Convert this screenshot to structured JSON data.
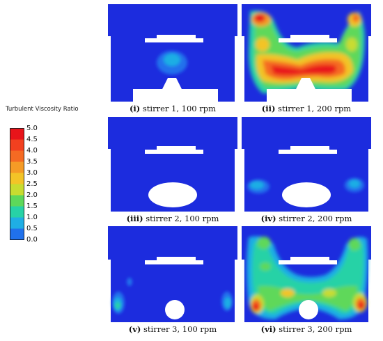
{
  "legend": {
    "title": "Turbulent Viscosity Ratio",
    "ticks": [
      "5.0",
      "4.5",
      "4.0",
      "3.5",
      "3.0",
      "2.5",
      "2.0",
      "1.5",
      "1.0",
      "0.5",
      "0.0"
    ],
    "colors": [
      "#e8141a",
      "#f2401f",
      "#f56a23",
      "#f59b26",
      "#f3c427",
      "#c8dc30",
      "#5ed85a",
      "#27d2a6",
      "#1faee4",
      "#2071ec",
      "#1c2cde"
    ]
  },
  "panels": [
    {
      "numeral": "(i)",
      "text": " stirrer 1, 100 rpm",
      "stirrer": "1"
    },
    {
      "numeral": "(ii)",
      "text": " stirrer 1, 200 rpm",
      "stirrer": "1"
    },
    {
      "numeral": "(iii)",
      "text": " stirrer 2, 100 rpm",
      "stirrer": "2"
    },
    {
      "numeral": "(iv)",
      "text": " stirrer 2, 200 rpm",
      "stirrer": "2"
    },
    {
      "numeral": "(v)",
      "text": " stirrer 3, 100 rpm",
      "stirrer": "3"
    },
    {
      "numeral": "(vi)",
      "text": " stirrer 3, 200 rpm",
      "stirrer": "3"
    }
  ]
}
